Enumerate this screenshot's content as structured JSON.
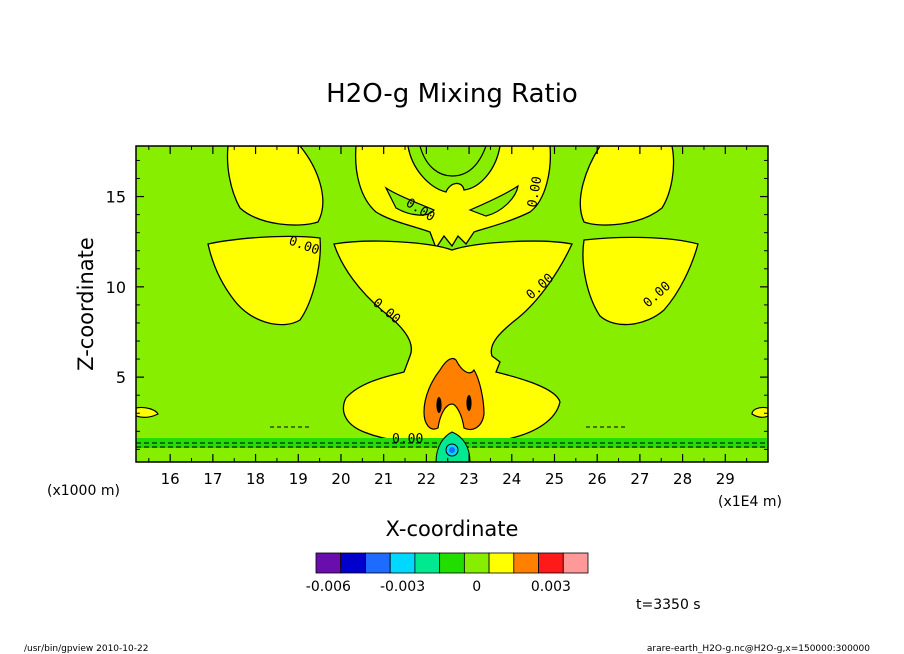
{
  "chart_data": {
    "type": "heatmap",
    "title": "H2O-g Mixing Ratio",
    "xlabel": "X-coordinate",
    "ylabel": "Z-coordinate",
    "x_unit_label": "(x1E4 m)",
    "y_unit_label": "(x1000 m)",
    "x_ticks": [
      "16",
      "17",
      "18",
      "19",
      "20",
      "21",
      "22",
      "23",
      "24",
      "25",
      "26",
      "27",
      "28",
      "29"
    ],
    "y_ticks": [
      "5",
      "10",
      "15"
    ],
    "xlim": [
      15.2,
      30
    ],
    "ylim": [
      0.3,
      17.8
    ],
    "contour_labels": [
      "0.00",
      "0.00",
      "0.00",
      "0.00",
      "0.00",
      "0.00",
      "0.00"
    ],
    "colorbar": {
      "colors": [
        "#6a0dad",
        "#0000cc",
        "#1e6bff",
        "#00d8ff",
        "#00e890",
        "#22dd00",
        "#88ee00",
        "#ffff00",
        "#ff8000",
        "#ff1a1a",
        "#ff9999"
      ],
      "tick_labels": [
        "-0.006",
        "-0.003",
        "0",
        "0.003"
      ],
      "tick_values": [
        -0.006,
        -0.003,
        0,
        0.003
      ]
    }
  },
  "time_label": "t=3350 s",
  "footer": {
    "left": "/usr/bin/gpview   2010-10-22",
    "right": "arare-earth_H2O-g.nc@H2O-g,x=150000:300000"
  }
}
